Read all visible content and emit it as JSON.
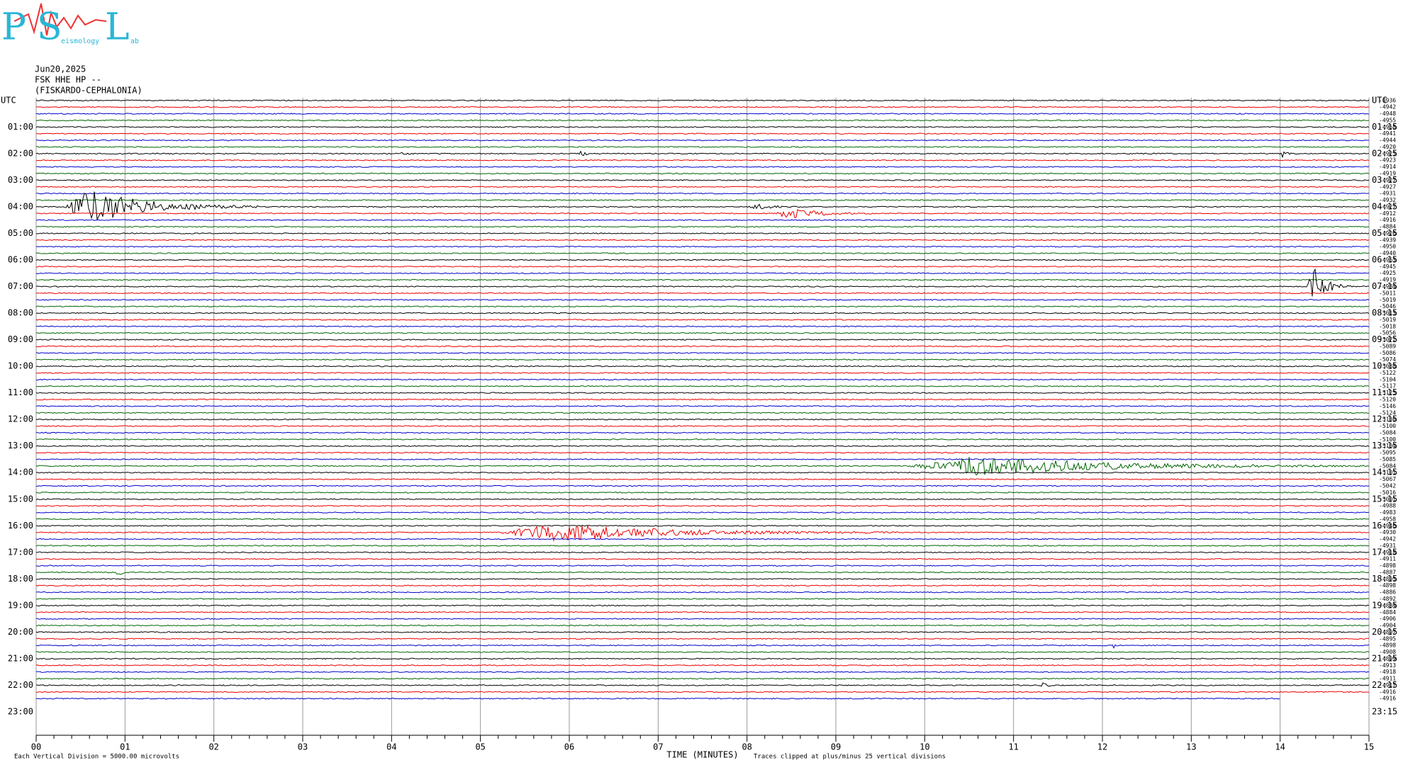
{
  "logo": {
    "letters": [
      "P",
      "S",
      "L"
    ],
    "small": [
      "eismology",
      "ab"
    ]
  },
  "header": {
    "date": "Jun20,2025",
    "station": "FSK HHE HP --",
    "location": "(FISKARDO-CEPHALONIA)"
  },
  "left_labels": [
    "UTC",
    "01:00",
    "02:00",
    "03:00",
    "04:00",
    "05:00",
    "06:00",
    "07:00",
    "08:00",
    "09:00",
    "10:00",
    "11:00",
    "12:00",
    "13:00",
    "14:00",
    "15:00",
    "16:00",
    "17:00",
    "18:00",
    "19:00",
    "20:00",
    "21:00",
    "22:00",
    "23:00"
  ],
  "right_labels": [
    "UTC",
    "01:15",
    "02:15",
    "03:15",
    "04:15",
    "05:15",
    "06:15",
    "07:15",
    "08:15",
    "09:15",
    "10:15",
    "11:15",
    "12:15",
    "13:15",
    "14:15",
    "15:15",
    "16:15",
    "17:15",
    "18:15",
    "19:15",
    "20:15",
    "21:15",
    "22:15",
    "23:15"
  ],
  "trace_offsets": [
    "-4936",
    "-4942",
    "-4948",
    "-4955",
    "-4958",
    "-4941",
    "-4944",
    "-4920",
    "-4925",
    "-4923",
    "-4914",
    "-4919",
    "-4927",
    "-4927",
    "-4931",
    "-4932",
    "-4927",
    "-4912",
    "-4916",
    "-4884",
    "-4926",
    "-4939",
    "-4950",
    "-4940",
    "-4963",
    "-4945",
    "-4925",
    "-4919",
    "-4984",
    "-5011",
    "-5019",
    "-5046",
    "-5013",
    "-5019",
    "-5018",
    "-5056",
    "-5072",
    "-5089",
    "-5086",
    "-5074",
    "-5088",
    "-5122",
    "-5104",
    "-5117",
    "-5125",
    "-5120",
    "-5146",
    "-5124",
    "-5130",
    "-5100",
    "-5084",
    "-5100",
    "-5104",
    "-5095",
    "-5085",
    "-5084",
    "-5101",
    "-5067",
    "-5042",
    "-5016",
    "-5001",
    "-4988",
    "-4983",
    "-4958",
    "-4946",
    "-4930",
    "-4942",
    "-4931",
    "-4918",
    "-4911",
    "-4898",
    "-4887",
    "-4895",
    "-4898",
    "-4886",
    "-4892",
    "-4884",
    "-4884",
    "-4906",
    "-4904",
    "-4897",
    "-4895",
    "-4898",
    "-4908",
    "-4899",
    "-4913",
    "-4918",
    "-4911",
    "-4917",
    "-4916",
    "-4916"
  ],
  "x_axis": {
    "ticks": [
      "00",
      "01",
      "02",
      "03",
      "04",
      "05",
      "06",
      "07",
      "08",
      "09",
      "10",
      "11",
      "12",
      "13",
      "14",
      "15"
    ],
    "title": "TIME (MINUTES)"
  },
  "footer": {
    "left": "Each Vertical Division = 5000.00 microvolts",
    "right": "Traces clipped at plus/minus 25 vertical divisions"
  }
}
